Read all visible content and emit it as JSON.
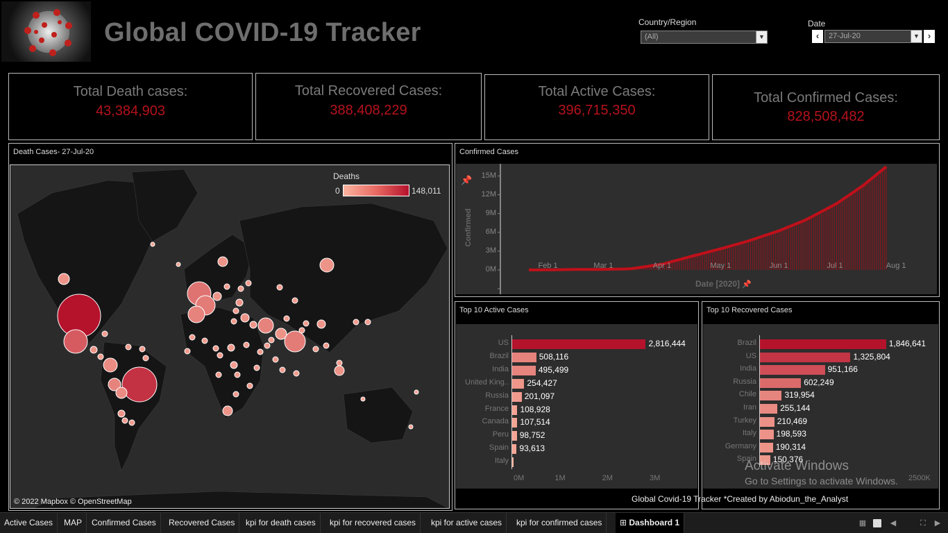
{
  "header": {
    "title": "Global COVID-19 Tracker"
  },
  "filters": {
    "country_label": "Country/Region",
    "country_value": "(All)",
    "date_label": "Date",
    "date_value": "27-Jul-20"
  },
  "kpis": [
    {
      "label": "Total Death cases:",
      "value": "43,384,903"
    },
    {
      "label": "Total Recovered Cases:",
      "value": "388,408,229"
    },
    {
      "label": "Total Active Cases:",
      "value": "396,715,350"
    },
    {
      "label": "Total Confirmed Cases:",
      "value": "828,508,482"
    }
  ],
  "map_panel": {
    "title": "Death Cases- 27-Jul-20",
    "legend_title": "Deaths",
    "legend_min": "0",
    "legend_max": "148,011",
    "credit": "© 2022 Mapbox © OpenStreetMap"
  },
  "line_panel": {
    "title": "Confirmed Cases",
    "y_title": "Confirmed",
    "x_title": "Date [2020]"
  },
  "active_panel": {
    "title": "Top 10 Active Cases"
  },
  "recovered_panel": {
    "title": "Top 10 Recovered Cases"
  },
  "chart_data": [
    {
      "type": "line",
      "title": "Confirmed Cases",
      "xlabel": "Date [2020]",
      "ylabel": "Confirmed",
      "x_ticks": [
        "Feb 1",
        "Mar 1",
        "Apr 1",
        "May 1",
        "Jun 1",
        "Jul 1",
        "Aug 1"
      ],
      "y_ticks": [
        "0M",
        "3M",
        "6M",
        "9M",
        "12M",
        "15M"
      ],
      "ylim": [
        -3000000,
        16500000
      ],
      "x": [
        "2020-01-22",
        "2020-02-01",
        "2020-02-15",
        "2020-03-01",
        "2020-03-15",
        "2020-04-01",
        "2020-04-15",
        "2020-05-01",
        "2020-05-15",
        "2020-06-01",
        "2020-06-15",
        "2020-07-01",
        "2020-07-15",
        "2020-07-27"
      ],
      "series": [
        {
          "values": [
            600,
            12000,
            69000,
            88000,
            170000,
            930000,
            2080000,
            3350000,
            4540000,
            6260000,
            8000000,
            10580000,
            13500000,
            16480000
          ]
        }
      ],
      "color": "#c0101a"
    },
    {
      "type": "bar",
      "title": "Top 10 Active Cases",
      "categories": [
        "US",
        "Brazil",
        "India",
        "United King..",
        "Russia",
        "France",
        "Canada",
        "Peru",
        "Spain",
        "Italy"
      ],
      "values": [
        2816444,
        508116,
        495499,
        254427,
        201097,
        108928,
        107514,
        98752,
        93613,
        12581
      ],
      "labels": [
        "2,816,444",
        "508,116",
        "495,499",
        "254,427",
        "201,097",
        "108,928",
        "107,514",
        "98,752",
        "93,613",
        ""
      ],
      "axis_ticks": [
        "0M",
        "1M",
        "2M",
        "3M"
      ],
      "xlim": [
        0,
        3000000
      ]
    },
    {
      "type": "bar",
      "title": "Top 10 Recovered Cases",
      "categories": [
        "Brazil",
        "US",
        "India",
        "Russia",
        "Chile",
        "Iran",
        "Turkey",
        "Italy",
        "Germany",
        "Spain"
      ],
      "values": [
        1846641,
        1325804,
        951166,
        602249,
        319954,
        255144,
        210469,
        198593,
        190314,
        150376
      ],
      "labels": [
        "1,846,641",
        "1,325,804",
        "951,166",
        "602,249",
        "319,954",
        "255,144",
        "210,469",
        "198,593",
        "190,314",
        "150,376"
      ],
      "axis_ticks": [
        "2500K"
      ],
      "xlim": [
        0,
        2500000
      ]
    }
  ],
  "watermark": {
    "line1": "Activate Windows",
    "line2": "Go to Settings to activate Windows."
  },
  "footer_note": "Global Covid-19 Tracker *Created by Abiodun_the_Analyst",
  "tabs": [
    "Active Cases",
    "MAP",
    "Confirmed Cases",
    "Recovered Cases",
    "kpi for death cases",
    "kpi for recovered cases",
    "kpi for active cases",
    "kpi for confirmed cases",
    "Dashboard 1"
  ],
  "active_tab": "Dashboard 1",
  "colors": {
    "accent_red": "#b5121b",
    "bubble": "#f7a090",
    "bar_max": "#b5122c",
    "bar_min": "#fbb4a0"
  }
}
